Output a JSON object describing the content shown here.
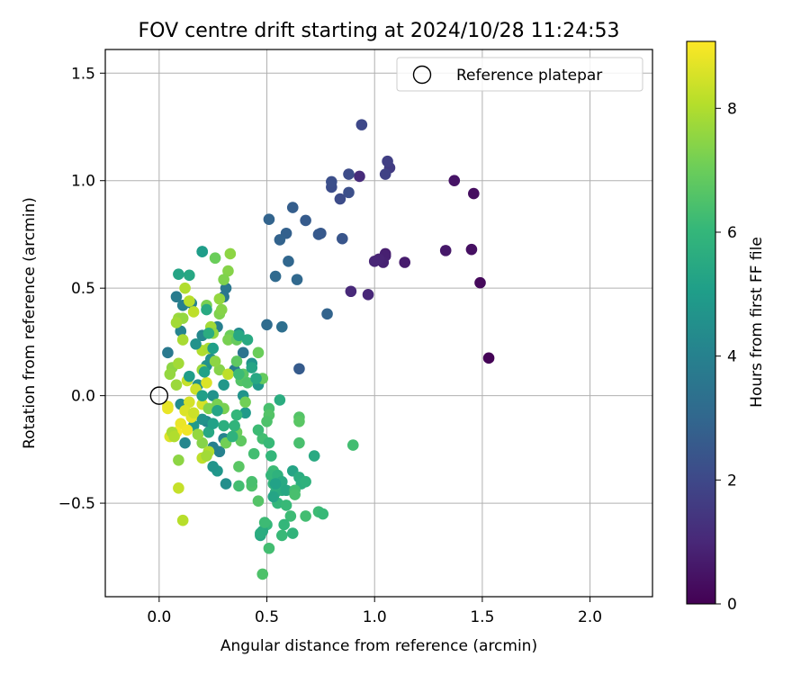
{
  "chart_data": {
    "type": "scatter",
    "title": "FOV centre drift starting at 2024/10/28 11:24:53",
    "xlabel": "Angular distance from reference (arcmin)",
    "ylabel": "Rotation from reference (arcmin)",
    "xlim": [
      -0.25,
      2.29
    ],
    "ylim": [
      -0.935,
      1.61
    ],
    "x_ticks": [
      0.0,
      0.5,
      1.0,
      1.5,
      2.0
    ],
    "x_tick_labels": [
      "0.0",
      "0.5",
      "1.0",
      "1.5",
      "2.0"
    ],
    "y_ticks": [
      -0.5,
      0.0,
      0.5,
      1.0,
      1.5
    ],
    "y_tick_labels": [
      "−0.5",
      "0.0",
      "0.5",
      "1.0",
      "1.5"
    ],
    "grid": true,
    "legend": {
      "placement": "top-right",
      "entries": [
        "Reference platepar"
      ]
    },
    "reference_point": {
      "x": 0.0,
      "y": 0.0
    },
    "colorbar": {
      "label": "Hours from first FF file",
      "min": 0,
      "max": 9.08,
      "ticks": [
        0,
        2,
        4,
        6,
        8
      ],
      "tick_labels": [
        "0",
        "2",
        "4",
        "6",
        "8"
      ],
      "colormap": "viridis",
      "colormap_stops": [
        "#440154",
        "#482878",
        "#3e4989",
        "#31688e",
        "#26828e",
        "#1f9e89",
        "#35b779",
        "#6ece58",
        "#b5de2b",
        "#fde725"
      ]
    },
    "points": [
      {
        "x": 1.53,
        "y": 0.175,
        "h": 0.05
      },
      {
        "x": 1.49,
        "y": 0.525,
        "h": 0.2
      },
      {
        "x": 1.46,
        "y": 0.94,
        "h": 0.3
      },
      {
        "x": 1.45,
        "y": 0.68,
        "h": 0.4
      },
      {
        "x": 1.37,
        "y": 1.0,
        "h": 0.5
      },
      {
        "x": 1.33,
        "y": 0.675,
        "h": 0.6
      },
      {
        "x": 1.14,
        "y": 0.62,
        "h": 0.7
      },
      {
        "x": 1.05,
        "y": 0.66,
        "h": 0.75
      },
      {
        "x": 1.05,
        "y": 0.65,
        "h": 0.8
      },
      {
        "x": 1.04,
        "y": 0.62,
        "h": 0.85
      },
      {
        "x": 1.02,
        "y": 0.635,
        "h": 0.9
      },
      {
        "x": 1.0,
        "y": 0.625,
        "h": 0.95
      },
      {
        "x": 0.97,
        "y": 0.47,
        "h": 1.0
      },
      {
        "x": 0.89,
        "y": 0.485,
        "h": 1.05
      },
      {
        "x": 0.93,
        "y": 1.02,
        "h": 1.1
      },
      {
        "x": 1.07,
        "y": 1.06,
        "h": 1.6
      },
      {
        "x": 1.06,
        "y": 1.09,
        "h": 1.7
      },
      {
        "x": 1.05,
        "y": 1.03,
        "h": 1.8
      },
      {
        "x": 0.94,
        "y": 1.26,
        "h": 2.0
      },
      {
        "x": 0.88,
        "y": 1.03,
        "h": 2.1
      },
      {
        "x": 0.88,
        "y": 0.945,
        "h": 2.2
      },
      {
        "x": 0.84,
        "y": 0.915,
        "h": 2.1
      },
      {
        "x": 0.8,
        "y": 0.97,
        "h": 2.15
      },
      {
        "x": 0.8,
        "y": 0.995,
        "h": 2.2
      },
      {
        "x": 0.85,
        "y": 0.73,
        "h": 2.4
      },
      {
        "x": 0.75,
        "y": 0.755,
        "h": 2.5
      },
      {
        "x": 0.74,
        "y": 0.75,
        "h": 2.55
      },
      {
        "x": 0.78,
        "y": 0.38,
        "h": 2.9
      },
      {
        "x": 0.68,
        "y": 0.815,
        "h": 2.6
      },
      {
        "x": 0.62,
        "y": 0.875,
        "h": 2.7
      },
      {
        "x": 0.59,
        "y": 0.755,
        "h": 2.8
      },
      {
        "x": 0.56,
        "y": 0.725,
        "h": 2.85
      },
      {
        "x": 0.51,
        "y": 0.82,
        "h": 2.9
      },
      {
        "x": 0.6,
        "y": 0.625,
        "h": 3.0
      },
      {
        "x": 0.64,
        "y": 0.54,
        "h": 3.05
      },
      {
        "x": 0.54,
        "y": 0.555,
        "h": 3.1
      },
      {
        "x": 0.5,
        "y": 0.33,
        "h": 3.2
      },
      {
        "x": 0.57,
        "y": 0.32,
        "h": 3.3
      },
      {
        "x": 0.65,
        "y": 0.125,
        "h": 2.6
      },
      {
        "x": 0.31,
        "y": 0.5,
        "h": 3.6
      },
      {
        "x": 0.3,
        "y": 0.46,
        "h": 3.6
      },
      {
        "x": 0.39,
        "y": 0.2,
        "h": 3.5
      },
      {
        "x": 0.04,
        "y": 0.2,
        "h": 3.7
      },
      {
        "x": 0.08,
        "y": 0.46,
        "h": 3.8
      },
      {
        "x": 0.11,
        "y": 0.42,
        "h": 3.9
      },
      {
        "x": 0.15,
        "y": 0.43,
        "h": 4.0
      },
      {
        "x": 0.1,
        "y": 0.3,
        "h": 4.1
      },
      {
        "x": 0.2,
        "y": 0.28,
        "h": 4.2
      },
      {
        "x": 0.27,
        "y": 0.32,
        "h": 3.9
      },
      {
        "x": 0.37,
        "y": 0.29,
        "h": 4.3
      },
      {
        "x": 0.35,
        "y": 0.27,
        "h": 4.4
      },
      {
        "x": 0.24,
        "y": 0.17,
        "h": 4.5
      },
      {
        "x": 0.22,
        "y": 0.14,
        "h": 4.6
      },
      {
        "x": 0.35,
        "y": 0.12,
        "h": 3.8
      },
      {
        "x": 0.43,
        "y": 0.15,
        "h": 4.7
      },
      {
        "x": 0.46,
        "y": 0.05,
        "h": 4.8
      },
      {
        "x": 0.4,
        "y": -0.08,
        "h": 4.9
      },
      {
        "x": 0.39,
        "y": 0.0,
        "h": 4.7
      },
      {
        "x": 0.3,
        "y": 0.05,
        "h": 4.8
      },
      {
        "x": 0.25,
        "y": 0.0,
        "h": 4.6
      },
      {
        "x": 0.18,
        "y": 0.05,
        "h": 4.5
      },
      {
        "x": 0.1,
        "y": -0.04,
        "h": 4.4
      },
      {
        "x": 0.22,
        "y": -0.12,
        "h": 4.3
      },
      {
        "x": 0.12,
        "y": -0.22,
        "h": 4.2
      },
      {
        "x": 0.3,
        "y": -0.2,
        "h": 4.1
      },
      {
        "x": 0.28,
        "y": -0.26,
        "h": 4.0
      },
      {
        "x": 0.25,
        "y": -0.24,
        "h": 3.9
      },
      {
        "x": 0.27,
        "y": -0.35,
        "h": 4.8
      },
      {
        "x": 0.25,
        "y": -0.33,
        "h": 4.7
      },
      {
        "x": 0.31,
        "y": -0.41,
        "h": 4.5
      },
      {
        "x": 0.2,
        "y": -0.11,
        "h": 4.6
      },
      {
        "x": 0.16,
        "y": -0.14,
        "h": 4.9
      },
      {
        "x": 0.06,
        "y": 0.13,
        "h": 7.5
      },
      {
        "x": 0.05,
        "y": 0.1,
        "h": 7.6
      },
      {
        "x": 0.08,
        "y": 0.05,
        "h": 7.7
      },
      {
        "x": 0.09,
        "y": 0.15,
        "h": 7.8
      },
      {
        "x": 0.11,
        "y": 0.26,
        "h": 7.9
      },
      {
        "x": 0.12,
        "y": 0.5,
        "h": 8.0
      },
      {
        "x": 0.14,
        "y": 0.44,
        "h": 8.1
      },
      {
        "x": 0.16,
        "y": 0.39,
        "h": 8.2
      },
      {
        "x": 0.09,
        "y": 0.36,
        "h": 7.7
      },
      {
        "x": 0.11,
        "y": 0.36,
        "h": 7.6
      },
      {
        "x": 0.08,
        "y": 0.34,
        "h": 7.8
      },
      {
        "x": 0.13,
        "y": 0.07,
        "h": 8.3
      },
      {
        "x": 0.17,
        "y": 0.03,
        "h": 8.4
      },
      {
        "x": 0.14,
        "y": -0.03,
        "h": 8.5
      },
      {
        "x": 0.12,
        "y": -0.07,
        "h": 8.6
      },
      {
        "x": 0.15,
        "y": -0.1,
        "h": 8.7
      },
      {
        "x": 0.1,
        "y": -0.13,
        "h": 8.8
      },
      {
        "x": 0.13,
        "y": -0.16,
        "h": 8.9
      },
      {
        "x": 0.08,
        "y": -0.17,
        "h": 9.0
      },
      {
        "x": 0.05,
        "y": -0.19,
        "h": 8.6
      },
      {
        "x": 0.04,
        "y": -0.05,
        "h": 8.7
      },
      {
        "x": 0.04,
        "y": -0.06,
        "h": 8.8
      },
      {
        "x": 0.06,
        "y": -0.17,
        "h": 7.9
      },
      {
        "x": 0.07,
        "y": -0.19,
        "h": 8.0
      },
      {
        "x": 0.09,
        "y": -0.3,
        "h": 7.5
      },
      {
        "x": 0.2,
        "y": -0.22,
        "h": 7.4
      },
      {
        "x": 0.2,
        "y": -0.29,
        "h": 8.2
      },
      {
        "x": 0.23,
        "y": -0.26,
        "h": 8.0
      },
      {
        "x": 0.22,
        "y": -0.28,
        "h": 7.8
      },
      {
        "x": 0.09,
        "y": -0.43,
        "h": 8.3
      },
      {
        "x": 0.11,
        "y": -0.58,
        "h": 8.1
      },
      {
        "x": 0.18,
        "y": -0.18,
        "h": 7.6
      },
      {
        "x": 0.16,
        "y": -0.08,
        "h": 8.4
      },
      {
        "x": 0.2,
        "y": -0.04,
        "h": 8.5
      },
      {
        "x": 0.23,
        "y": -0.06,
        "h": 7.3
      },
      {
        "x": 0.27,
        "y": -0.04,
        "h": 7.2
      },
      {
        "x": 0.31,
        "y": -0.22,
        "h": 7.1
      },
      {
        "x": 0.28,
        "y": 0.12,
        "h": 7.4
      },
      {
        "x": 0.32,
        "y": 0.1,
        "h": 8.2
      },
      {
        "x": 0.22,
        "y": 0.06,
        "h": 8.6
      },
      {
        "x": 0.2,
        "y": 0.21,
        "h": 8.0
      },
      {
        "x": 0.23,
        "y": 0.22,
        "h": 7.9
      },
      {
        "x": 0.2,
        "y": 0.12,
        "h": 7.7
      },
      {
        "x": 0.26,
        "y": 0.16,
        "h": 7.5
      },
      {
        "x": 0.28,
        "y": 0.38,
        "h": 7.3
      },
      {
        "x": 0.28,
        "y": 0.45,
        "h": 7.6
      },
      {
        "x": 0.29,
        "y": 0.4,
        "h": 7.4
      },
      {
        "x": 0.22,
        "y": 0.42,
        "h": 7.2
      },
      {
        "x": 0.26,
        "y": 0.64,
        "h": 7.0
      },
      {
        "x": 0.32,
        "y": 0.58,
        "h": 7.4
      },
      {
        "x": 0.33,
        "y": 0.66,
        "h": 7.5
      },
      {
        "x": 0.3,
        "y": 0.54,
        "h": 7.3
      },
      {
        "x": 0.24,
        "y": 0.32,
        "h": 7.8
      },
      {
        "x": 0.25,
        "y": 0.29,
        "h": 7.6
      },
      {
        "x": 0.33,
        "y": 0.28,
        "h": 7.0
      },
      {
        "x": 0.32,
        "y": 0.26,
        "h": 7.2
      },
      {
        "x": 0.36,
        "y": 0.26,
        "h": 6.9
      },
      {
        "x": 0.36,
        "y": 0.16,
        "h": 6.8
      },
      {
        "x": 0.38,
        "y": 0.07,
        "h": 6.6
      },
      {
        "x": 0.39,
        "y": 0.1,
        "h": 6.7
      },
      {
        "x": 0.41,
        "y": 0.06,
        "h": 6.5
      },
      {
        "x": 0.46,
        "y": 0.2,
        "h": 7.0
      },
      {
        "x": 0.48,
        "y": 0.08,
        "h": 6.9
      },
      {
        "x": 0.4,
        "y": -0.03,
        "h": 7.1
      },
      {
        "x": 0.48,
        "y": -0.2,
        "h": 6.3
      },
      {
        "x": 0.46,
        "y": -0.16,
        "h": 6.2
      },
      {
        "x": 0.51,
        "y": -0.06,
        "h": 6.4
      },
      {
        "x": 0.51,
        "y": -0.09,
        "h": 6.6
      },
      {
        "x": 0.5,
        "y": -0.12,
        "h": 6.5
      },
      {
        "x": 0.51,
        "y": -0.22,
        "h": 6.1
      },
      {
        "x": 0.44,
        "y": -0.27,
        "h": 6.3
      },
      {
        "x": 0.52,
        "y": -0.28,
        "h": 6.0
      },
      {
        "x": 0.53,
        "y": -0.35,
        "h": 6.2
      },
      {
        "x": 0.52,
        "y": -0.37,
        "h": 6.0
      },
      {
        "x": 0.53,
        "y": -0.41,
        "h": 5.9
      },
      {
        "x": 0.55,
        "y": -0.37,
        "h": 5.8
      },
      {
        "x": 0.54,
        "y": -0.45,
        "h": 5.7
      },
      {
        "x": 0.57,
        "y": -0.44,
        "h": 5.6
      },
      {
        "x": 0.57,
        "y": -0.4,
        "h": 5.5
      },
      {
        "x": 0.59,
        "y": -0.44,
        "h": 5.4
      },
      {
        "x": 0.62,
        "y": -0.35,
        "h": 5.3
      },
      {
        "x": 0.65,
        "y": -0.38,
        "h": 5.6
      },
      {
        "x": 0.66,
        "y": -0.41,
        "h": 5.7
      },
      {
        "x": 0.68,
        "y": -0.4,
        "h": 5.8
      },
      {
        "x": 0.72,
        "y": -0.28,
        "h": 5.5
      },
      {
        "x": 0.55,
        "y": -0.5,
        "h": 6.0
      },
      {
        "x": 0.59,
        "y": -0.51,
        "h": 6.1
      },
      {
        "x": 0.63,
        "y": -0.44,
        "h": 6.3
      },
      {
        "x": 0.63,
        "y": -0.46,
        "h": 6.4
      },
      {
        "x": 0.61,
        "y": -0.56,
        "h": 6.2
      },
      {
        "x": 0.58,
        "y": -0.6,
        "h": 6.0
      },
      {
        "x": 0.57,
        "y": -0.65,
        "h": 6.1
      },
      {
        "x": 0.62,
        "y": -0.64,
        "h": 5.9
      },
      {
        "x": 0.5,
        "y": -0.6,
        "h": 6.0
      },
      {
        "x": 0.47,
        "y": -0.65,
        "h": 5.4
      },
      {
        "x": 0.48,
        "y": -0.63,
        "h": 5.5
      },
      {
        "x": 0.51,
        "y": -0.71,
        "h": 6.3
      },
      {
        "x": 0.48,
        "y": -0.83,
        "h": 6.5
      },
      {
        "x": 0.46,
        "y": -0.49,
        "h": 6.6
      },
      {
        "x": 0.43,
        "y": -0.42,
        "h": 6.5
      },
      {
        "x": 0.43,
        "y": -0.4,
        "h": 6.4
      },
      {
        "x": 0.37,
        "y": -0.42,
        "h": 6.3
      },
      {
        "x": 0.37,
        "y": -0.33,
        "h": 6.7
      },
      {
        "x": 0.38,
        "y": -0.21,
        "h": 6.8
      },
      {
        "x": 0.36,
        "y": -0.17,
        "h": 7.0
      },
      {
        "x": 0.3,
        "y": -0.06,
        "h": 7.2
      },
      {
        "x": 0.54,
        "y": -0.41,
        "h": 5.2
      },
      {
        "x": 0.53,
        "y": -0.47,
        "h": 5.3
      },
      {
        "x": 0.56,
        "y": -0.02,
        "h": 5.6
      },
      {
        "x": 0.65,
        "y": -0.22,
        "h": 6.4
      },
      {
        "x": 0.65,
        "y": -0.1,
        "h": 6.6
      },
      {
        "x": 0.65,
        "y": -0.12,
        "h": 6.7
      },
      {
        "x": 0.74,
        "y": -0.54,
        "h": 6.2
      },
      {
        "x": 0.76,
        "y": -0.55,
        "h": 6.1
      },
      {
        "x": 0.68,
        "y": -0.56,
        "h": 6.3
      },
      {
        "x": 0.9,
        "y": -0.23,
        "h": 6.3
      },
      {
        "x": 0.49,
        "y": -0.59,
        "h": 6.2
      },
      {
        "x": 0.25,
        "y": 0.22,
        "h": 5.1
      },
      {
        "x": 0.2,
        "y": 0.67,
        "h": 5.2
      },
      {
        "x": 0.2,
        "y": 0.67,
        "h": 5.0
      },
      {
        "x": 0.09,
        "y": 0.565,
        "h": 5.3
      },
      {
        "x": 0.14,
        "y": 0.56,
        "h": 5.4
      },
      {
        "x": 0.22,
        "y": 0.4,
        "h": 5.5
      },
      {
        "x": 0.23,
        "y": 0.29,
        "h": 5.6
      },
      {
        "x": 0.17,
        "y": 0.24,
        "h": 4.6
      },
      {
        "x": 0.21,
        "y": 0.11,
        "h": 5.2
      },
      {
        "x": 0.14,
        "y": 0.09,
        "h": 5.0
      },
      {
        "x": 0.2,
        "y": 0.0,
        "h": 5.1
      },
      {
        "x": 0.27,
        "y": -0.07,
        "h": 5.3
      },
      {
        "x": 0.23,
        "y": -0.17,
        "h": 5.4
      },
      {
        "x": 0.25,
        "y": -0.13,
        "h": 5.2
      },
      {
        "x": 0.3,
        "y": -0.14,
        "h": 5.7
      },
      {
        "x": 0.34,
        "y": -0.19,
        "h": 5.8
      },
      {
        "x": 0.35,
        "y": -0.14,
        "h": 5.9
      },
      {
        "x": 0.36,
        "y": -0.09,
        "h": 6.0
      },
      {
        "x": 0.37,
        "y": 0.1,
        "h": 6.2
      },
      {
        "x": 0.43,
        "y": 0.13,
        "h": 5.3
      },
      {
        "x": 0.45,
        "y": 0.08,
        "h": 5.4
      },
      {
        "x": 0.41,
        "y": 0.26,
        "h": 5.5
      },
      {
        "x": 0.37,
        "y": 0.28,
        "h": 5.4
      },
      {
        "x": 0.47,
        "y": -0.64,
        "h": 5.6
      }
    ]
  }
}
